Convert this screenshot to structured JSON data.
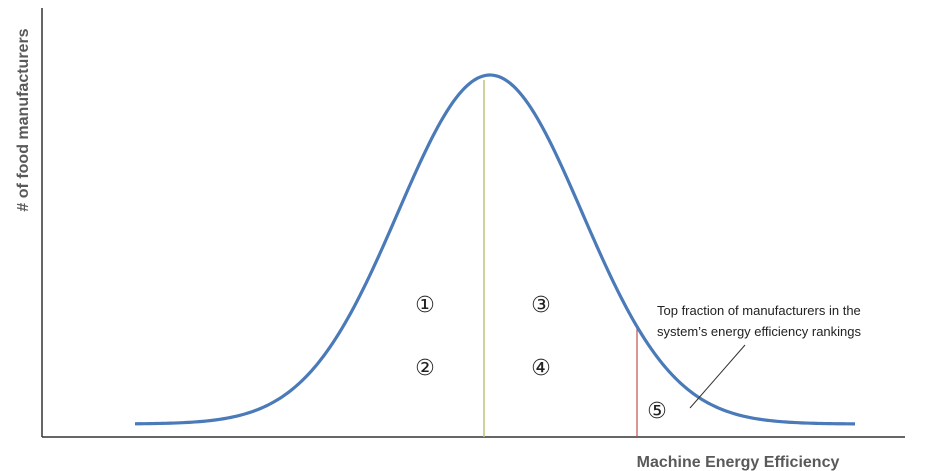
{
  "axes": {
    "x_label": "Machine Energy Efficiency",
    "y_label": "# of food manufacturers"
  },
  "regions": [
    {
      "label": "①"
    },
    {
      "label": "②"
    },
    {
      "label": "③"
    },
    {
      "label": "④"
    },
    {
      "label": "⑤"
    }
  ],
  "annotation": {
    "lines": [
      "Top  fraction of manufacturers in the",
      "system’s energy efficiency rankings"
    ]
  }
}
